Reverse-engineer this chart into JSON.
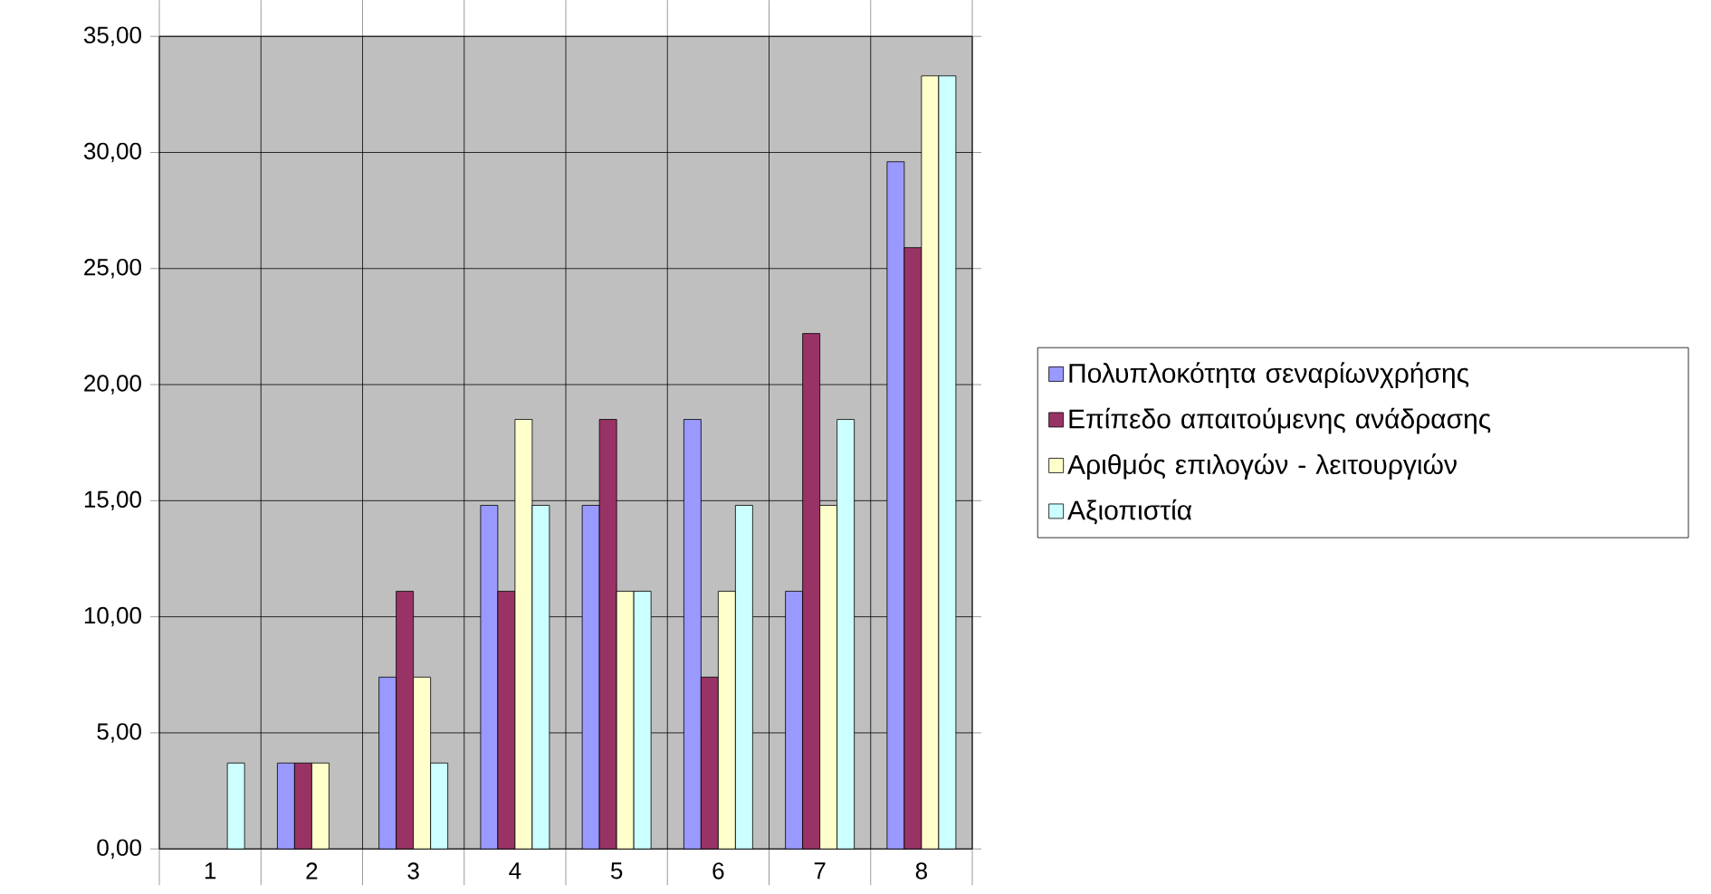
{
  "chart_data": {
    "type": "bar",
    "categories": [
      "1",
      "2",
      "3",
      "4",
      "5",
      "6",
      "7",
      "8"
    ],
    "series": [
      {
        "name": "Πολυπλοκότητα σεναρίωνχρήσης",
        "color": "#9999ff",
        "values": [
          null,
          3.7,
          7.4,
          14.8,
          14.8,
          18.5,
          11.1,
          29.6
        ]
      },
      {
        "name": "Επίπεδο απαιτούμενης ανάδρασης",
        "color": "#993366",
        "values": [
          null,
          3.7,
          11.1,
          11.1,
          18.5,
          7.4,
          22.2,
          25.9
        ]
      },
      {
        "name": "Αριθμός επιλογών - λειτουργιών",
        "color": "#ffffcc",
        "values": [
          null,
          3.7,
          7.4,
          18.5,
          11.1,
          11.1,
          14.8,
          33.3
        ]
      },
      {
        "name": "Αξιοπιστία",
        "color": "#ccffff",
        "values": [
          3.7,
          null,
          3.7,
          14.8,
          11.1,
          14.8,
          18.5,
          33.3
        ]
      }
    ],
    "ylim": [
      0,
      35
    ],
    "yticks": [
      {
        "value": 0,
        "label": "0,00"
      },
      {
        "value": 5,
        "label": "5,00"
      },
      {
        "value": 10,
        "label": "10,00"
      },
      {
        "value": 15,
        "label": "15,00"
      },
      {
        "value": 20,
        "label": "20,00"
      },
      {
        "value": 25,
        "label": "25,00"
      },
      {
        "value": 30,
        "label": "30,00"
      },
      {
        "value": 35,
        "label": "35,00"
      }
    ],
    "grid": true,
    "legend": "right"
  }
}
